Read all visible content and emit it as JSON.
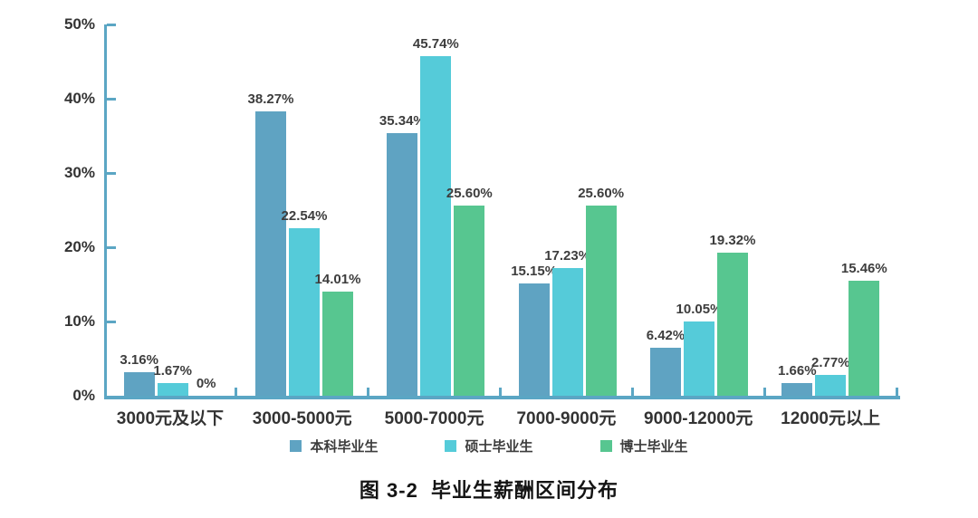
{
  "figure": {
    "caption": "图 3-2  毕业生薪酬区间分布"
  },
  "chart_data": {
    "type": "bar",
    "title": "图 3-2 毕业生薪酬区间分布",
    "xlabel": "",
    "ylabel": "",
    "ylim": [
      0,
      50
    ],
    "grid": false,
    "legend_position": "bottom",
    "axis_color": "#5ba6c4",
    "value_label_color": "#3d3d3d",
    "categories": [
      "3000元及以下",
      "3000-5000元",
      "5000-7000元",
      "7000-9000元",
      "9000-12000元",
      "12000元以上"
    ],
    "yticks": [
      {
        "value": 0,
        "label": "0%"
      },
      {
        "value": 10,
        "label": "10%"
      },
      {
        "value": 20,
        "label": "20%"
      },
      {
        "value": 30,
        "label": "30%"
      },
      {
        "value": 40,
        "label": "40%"
      },
      {
        "value": 50,
        "label": "50%"
      }
    ],
    "series": [
      {
        "name": "本科毕业生",
        "color": "#5fa3c2",
        "values": [
          3.16,
          38.27,
          35.34,
          15.15,
          6.42,
          1.66
        ],
        "labels": [
          "3.16%",
          "38.27%",
          "35.34%",
          "15.15%",
          "6.42%",
          "1.66%"
        ]
      },
      {
        "name": "硕士毕业生",
        "color": "#55cbd9",
        "values": [
          1.67,
          22.54,
          45.74,
          17.23,
          10.05,
          2.77
        ],
        "labels": [
          "1.67%",
          "22.54%",
          "45.74%",
          "17.23%",
          "10.05%",
          "2.77%"
        ]
      },
      {
        "name": "博士毕业生",
        "color": "#57c690",
        "values": [
          0,
          14.01,
          25.6,
          25.6,
          19.32,
          15.46
        ],
        "labels": [
          "0%",
          "14.01%",
          "25.60%",
          "25.60%",
          "19.32%",
          "15.46%"
        ]
      }
    ]
  }
}
